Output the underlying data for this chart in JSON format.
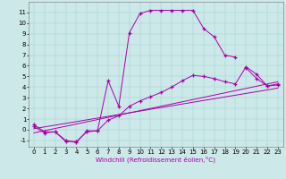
{
  "xlabel": "Windchill (Refroidissement éolien,°C)",
  "bg_color": "#cce8e8",
  "line_color": "#aa00aa",
  "xlim": [
    -0.5,
    23.5
  ],
  "ylim": [
    -1.6,
    12.0
  ],
  "xticks": [
    0,
    1,
    2,
    3,
    4,
    5,
    6,
    7,
    8,
    9,
    10,
    11,
    12,
    13,
    14,
    15,
    16,
    17,
    18,
    19,
    20,
    21,
    22,
    23
  ],
  "yticks": [
    -1,
    0,
    1,
    2,
    3,
    4,
    5,
    6,
    7,
    8,
    9,
    10,
    11
  ],
  "curve1_x": [
    0,
    1,
    2,
    3,
    4,
    5,
    6,
    7,
    8,
    9,
    10,
    11,
    12,
    13,
    14,
    15,
    16,
    17,
    18,
    19,
    20,
    21,
    22,
    23
  ],
  "curve1_y": [
    0.5,
    -0.2,
    -0.2,
    -1.0,
    -1.2,
    -0.1,
    -0.1,
    4.6,
    2.2,
    9.1,
    10.9,
    11.2,
    11.2,
    11.2,
    11.2,
    11.2,
    9.5,
    8.7,
    7.0,
    6.8,
    null,
    null,
    null,
    null
  ],
  "curve2_x": [
    0,
    1,
    2,
    3,
    4,
    5,
    6,
    7,
    8,
    9,
    10,
    11,
    12,
    13,
    14,
    15,
    16,
    17,
    18,
    19,
    20,
    21,
    22,
    23
  ],
  "curve2_y": [
    null,
    null,
    null,
    null,
    null,
    null,
    null,
    null,
    null,
    null,
    null,
    null,
    null,
    null,
    null,
    null,
    null,
    null,
    null,
    null,
    5.8,
    4.8,
    4.1,
    4.2
  ],
  "curve3_x": [
    0,
    1,
    2,
    3,
    4,
    5,
    6,
    7,
    8,
    9,
    10,
    11,
    12,
    13,
    14,
    15,
    16,
    17,
    18,
    19,
    20,
    21,
    22,
    23
  ],
  "curve3_y": [
    0.3,
    -0.3,
    -0.2,
    -1.1,
    -1.1,
    -0.2,
    -0.1,
    0.9,
    1.3,
    2.2,
    2.7,
    3.1,
    3.5,
    4.0,
    4.6,
    5.1,
    5.0,
    4.8,
    4.5,
    4.3,
    5.9,
    5.2,
    4.1,
    4.3
  ],
  "line1_x": [
    0,
    23
  ],
  "line1_y": [
    0.1,
    3.9
  ],
  "line2_x": [
    0,
    23
  ],
  "line2_y": [
    -0.3,
    4.5
  ]
}
